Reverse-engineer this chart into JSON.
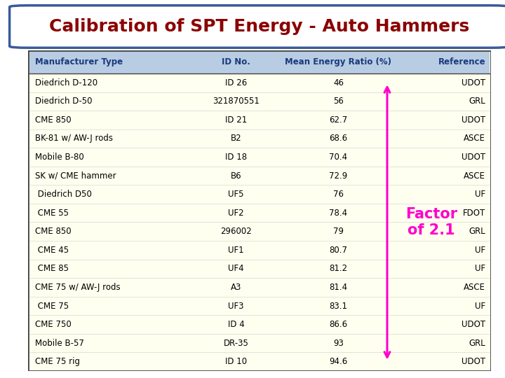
{
  "title": "Calibration of SPT Energy - Auto Hammers",
  "title_color": "#8B0000",
  "title_bg": "#FFFFFF",
  "title_border_color": "#3A5A9A",
  "table_bg": "#FFFFF0",
  "header_bg": "#B8CCE4",
  "header_text_color": "#1A3A7A",
  "body_text_color": "#000000",
  "border_color": "#444444",
  "headers": [
    "Manufacturer Type",
    "ID No.",
    "Mean Energy Ratio (%)",
    "Reference"
  ],
  "rows": [
    [
      "Diedrich D-120",
      "ID 26",
      "46",
      "UDOT"
    ],
    [
      "Diedrich D-50",
      "321870551",
      "56",
      "GRL"
    ],
    [
      "CME 850",
      "ID 21",
      "62.7",
      "UDOT"
    ],
    [
      "BK-81 w/ AW-J rods",
      "B2",
      "68.6",
      "ASCE"
    ],
    [
      "Mobile B-80",
      "ID 18",
      "70.4",
      "UDOT"
    ],
    [
      "SK w/ CME hammer",
      "B6",
      "72.9",
      "ASCE"
    ],
    [
      " Diedrich D50",
      "UF5",
      "76",
      "UF"
    ],
    [
      " CME 55",
      "UF2",
      "78.4",
      "FDOT"
    ],
    [
      "CME 850",
      "296002",
      "79",
      "GRL"
    ],
    [
      " CME 45",
      "UF1",
      "80.7",
      "UF"
    ],
    [
      " CME 85",
      "UF4",
      "81.2",
      "UF"
    ],
    [
      "CME 75 w/ AW-J rods",
      "A3",
      "81.4",
      "ASCE"
    ],
    [
      " CME 75",
      "UF3",
      "83.1",
      "UF"
    ],
    [
      "CME 750",
      "ID 4",
      "86.6",
      "UDOT"
    ],
    [
      "Mobile B-57",
      "DR-35",
      "93",
      "GRL"
    ],
    [
      "CME 75 rig",
      "ID 10",
      "94.6",
      "UDOT"
    ]
  ],
  "arrow_color": "#FF00CC",
  "factor_text": "Factor\nof 2.1",
  "factor_color": "#FF00CC",
  "fig_width": 7.2,
  "fig_height": 5.4,
  "dpi": 100
}
